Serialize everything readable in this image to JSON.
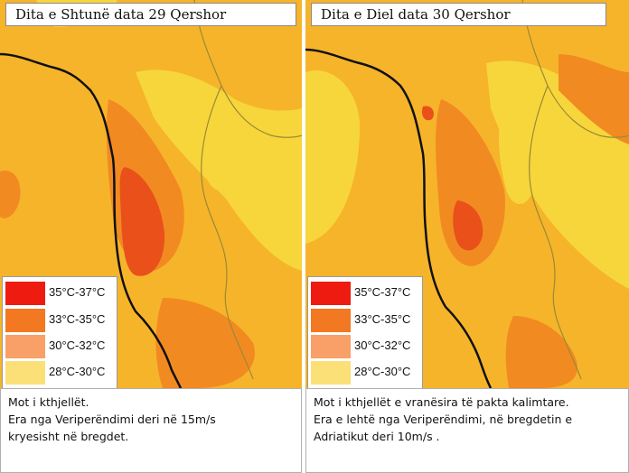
{
  "legend": [
    {
      "label": "35°C-37°C",
      "color": "#ee1c10"
    },
    {
      "label": "33°C-35°C",
      "color": "#f27822"
    },
    {
      "label": "30°C-32°C",
      "color": "#f8a068"
    },
    {
      "label": "28°C-30°C",
      "color": "#fbe077"
    }
  ],
  "map_colors": {
    "base": "#f6b42a",
    "yellow": "#f7d63c",
    "orange": "#f28a22",
    "hot": "#e9501a",
    "border": "#9a8a35",
    "coast": "#111111"
  },
  "panels": [
    {
      "title": "Dita e Shtunë data 29 Qershor",
      "description": [
        "Mot i kthjellët.",
        "Era nga Veriperëndimi deri në 15m/s",
        "kryesisht në bregdet."
      ]
    },
    {
      "title": "Dita e Diel data 30 Qershor",
      "description": [
        "Mot i kthjellët e vranësira të pakta kalimtare.",
        "Era e lehtë nga Veriperëndimi,  në  bregdetin e",
        "Adriatikut deri 10m/s ."
      ]
    }
  ]
}
